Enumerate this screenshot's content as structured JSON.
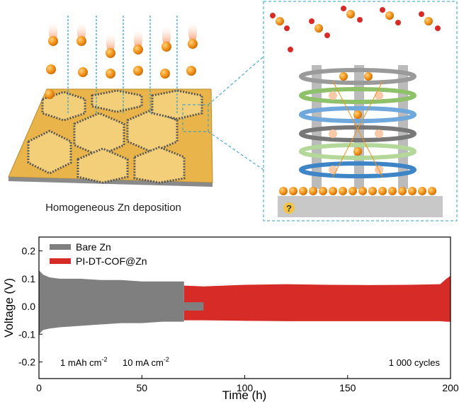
{
  "illustration": {
    "caption": "Homogeneous Zn deposition",
    "question_mark": "?"
  },
  "chart_data": {
    "type": "band",
    "xlabel": "Time (h)",
    "ylabel": "Voltage (V)",
    "xlim": [
      0,
      200
    ],
    "xticks": [
      0,
      50,
      100,
      150,
      200
    ],
    "ylim": [
      -0.26,
      0.25
    ],
    "yticks": [
      -0.2,
      -0.1,
      {
        "value": 0,
        "label": "0.0"
      },
      0.1,
      0.2
    ],
    "legend": "upper left",
    "series": [
      {
        "name": "Bare Zn",
        "color": "#7f7f7f",
        "x": [
          0,
          2,
          5,
          10,
          20,
          30,
          40,
          50,
          60,
          70.5,
          70.5,
          80
        ],
        "upper": [
          0.13,
          0.115,
          0.105,
          0.1,
          0.1,
          0.095,
          0.095,
          0.09,
          0.09,
          0.09,
          0.015,
          0.015
        ],
        "lower": [
          -0.1,
          -0.085,
          -0.08,
          -0.075,
          -0.07,
          -0.065,
          -0.06,
          -0.06,
          -0.055,
          -0.055,
          -0.015,
          -0.015
        ]
      },
      {
        "name": "PI-DT-COF@Zn",
        "color": "#d62b26",
        "x": [
          70.5,
          80,
          100,
          120,
          140,
          160,
          180,
          195,
          198,
          200
        ],
        "upper": [
          0.075,
          0.072,
          0.078,
          0.08,
          0.078,
          0.077,
          0.078,
          0.08,
          0.1,
          0.11
        ],
        "lower": [
          -0.05,
          -0.05,
          -0.052,
          -0.053,
          -0.053,
          -0.053,
          -0.053,
          -0.053,
          -0.055,
          -0.055
        ]
      }
    ],
    "annotations": [
      {
        "text": "1 mAh cm",
        "sup": "-2"
      },
      {
        "text": "10 mA cm",
        "sup": "-2"
      },
      {
        "text": "1 000 cycles"
      }
    ]
  }
}
